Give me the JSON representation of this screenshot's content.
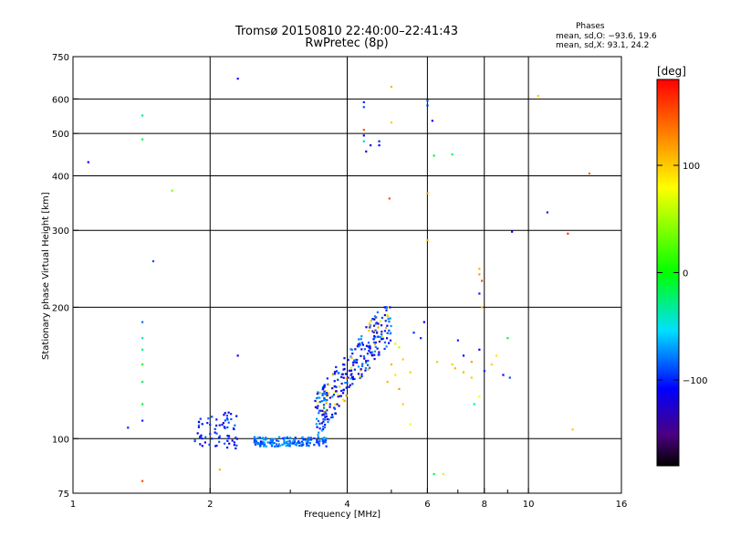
{
  "title_line1": "Tromsø 20150810 22:40:00–22:41:43",
  "title_line2": "RwPretec (8p)",
  "phases": {
    "header": "Phases",
    "line_o": "mean, sd,O: −93.6, 19.6",
    "line_x": "mean, sd,X:  93.1, 24.2"
  },
  "colorbar": {
    "title": "[deg]",
    "ticks": [
      "100",
      "0",
      "−100"
    ],
    "tick_values": [
      100,
      0,
      -100
    ],
    "range": [
      -180,
      180
    ]
  },
  "chart_data": {
    "type": "scatter",
    "title": "Tromsø 20150810 22:40:00–22:41:43",
    "subtitle": "RwPretec (8p)",
    "xlabel": "Frequency [MHz]",
    "ylabel": "Stationary phase Virtual Height [km]",
    "x_scale": "log",
    "y_scale": "log",
    "xlim": [
      1,
      16
    ],
    "ylim": [
      75,
      750
    ],
    "x_ticks": [
      1,
      2,
      4,
      6,
      8,
      10,
      16
    ],
    "x_tick_labels": [
      "1",
      "2",
      "4",
      "6",
      "8",
      "10",
      "16"
    ],
    "x_minor_ticks": [
      3,
      5,
      7,
      9
    ],
    "y_ticks": [
      75,
      100,
      200,
      300,
      400,
      500,
      600,
      750
    ],
    "y_tick_labels": [
      "75",
      "100",
      "200",
      "300",
      "400",
      "500",
      "600",
      "750"
    ],
    "grid": true,
    "grid_x": [
      2,
      4,
      6,
      8,
      10
    ],
    "grid_y": [
      100,
      200,
      300,
      400,
      500,
      600
    ],
    "color_by": "phase [deg]",
    "points": [
      [
        1.08,
        430,
        -110
      ],
      [
        1.32,
        106,
        -100
      ],
      [
        1.42,
        550,
        -30
      ],
      [
        1.42,
        485,
        -20
      ],
      [
        1.42,
        80,
        150
      ],
      [
        1.42,
        185,
        -80
      ],
      [
        1.42,
        170,
        -40
      ],
      [
        1.42,
        160,
        -30
      ],
      [
        1.42,
        148,
        -10
      ],
      [
        1.42,
        135,
        -20
      ],
      [
        1.42,
        120,
        -10
      ],
      [
        1.42,
        110,
        -100
      ],
      [
        1.5,
        255,
        -90
      ],
      [
        1.65,
        370,
        40
      ],
      [
        2.1,
        85,
        110
      ],
      [
        2.3,
        668,
        -110
      ],
      [
        2.3,
        155,
        -110
      ],
      [
        4.35,
        590,
        -100
      ],
      [
        4.35,
        575,
        -90
      ],
      [
        4.35,
        510,
        150
      ],
      [
        4.35,
        495,
        -110
      ],
      [
        4.35,
        480,
        -60
      ],
      [
        4.4,
        455,
        -110
      ],
      [
        4.5,
        470,
        -120
      ],
      [
        4.7,
        480,
        -100
      ],
      [
        4.7,
        470,
        -110
      ],
      [
        4.95,
        355,
        150
      ],
      [
        5.0,
        640,
        110
      ],
      [
        5.0,
        530,
        100
      ],
      [
        5.1,
        165,
        90
      ],
      [
        5.5,
        108,
        80
      ],
      [
        6.0,
        595,
        -90
      ],
      [
        6.0,
        580,
        -100
      ],
      [
        6.0,
        365,
        120
      ],
      [
        6.0,
        285,
        110
      ],
      [
        6.15,
        535,
        -110
      ],
      [
        6.2,
        445,
        -10
      ],
      [
        6.2,
        83,
        -20
      ],
      [
        6.5,
        83,
        90
      ],
      [
        6.8,
        448,
        -20
      ],
      [
        7.8,
        245,
        110
      ],
      [
        7.8,
        238,
        120
      ],
      [
        7.9,
        230,
        150
      ],
      [
        7.8,
        215,
        -100
      ],
      [
        7.9,
        200,
        110
      ],
      [
        7.6,
        120,
        -40
      ],
      [
        7.8,
        125,
        80
      ],
      [
        8.5,
        155,
        90
      ],
      [
        9.0,
        170,
        -10
      ],
      [
        9.2,
        298,
        -110
      ],
      [
        10.5,
        610,
        100
      ],
      [
        11.0,
        330,
        -100
      ],
      [
        12.2,
        295,
        160
      ],
      [
        12.5,
        105,
        100
      ],
      [
        13.6,
        405,
        140
      ],
      [
        5.2,
        162,
        60
      ],
      [
        5.3,
        152,
        100
      ],
      [
        5.0,
        148,
        110
      ],
      [
        5.1,
        140,
        90
      ],
      [
        5.5,
        142,
        100
      ],
      [
        5.2,
        130,
        120
      ],
      [
        5.3,
        120,
        100
      ],
      [
        4.9,
        135,
        110
      ],
      [
        5.6,
        175,
        -100
      ],
      [
        5.8,
        170,
        -100
      ],
      [
        5.9,
        185,
        -110
      ],
      [
        6.3,
        150,
        100
      ],
      [
        6.8,
        148,
        100
      ],
      [
        6.9,
        145,
        110
      ],
      [
        7.2,
        142,
        110
      ],
      [
        7.5,
        150,
        120
      ],
      [
        7.5,
        138,
        100
      ],
      [
        7.8,
        160,
        -110
      ],
      [
        8.0,
        143,
        -100
      ],
      [
        8.3,
        148,
        100
      ],
      [
        8.8,
        140,
        -110
      ],
      [
        9.1,
        138,
        -90
      ],
      [
        7.2,
        155,
        -110
      ],
      [
        7.0,
        168,
        -100
      ]
    ],
    "low_trace": {
      "height": [
        96,
        101
      ],
      "x_range": [
        2.5,
        3.6
      ],
      "phase": -80
    },
    "cluster_1": {
      "x_range": [
        1.85,
        2.3
      ],
      "height_range": [
        95,
        115
      ],
      "phase": -100
    },
    "cluster_2": {
      "x_range": [
        3.4,
        5.0
      ],
      "height_range": [
        105,
        200
      ],
      "phase": -100
    }
  }
}
